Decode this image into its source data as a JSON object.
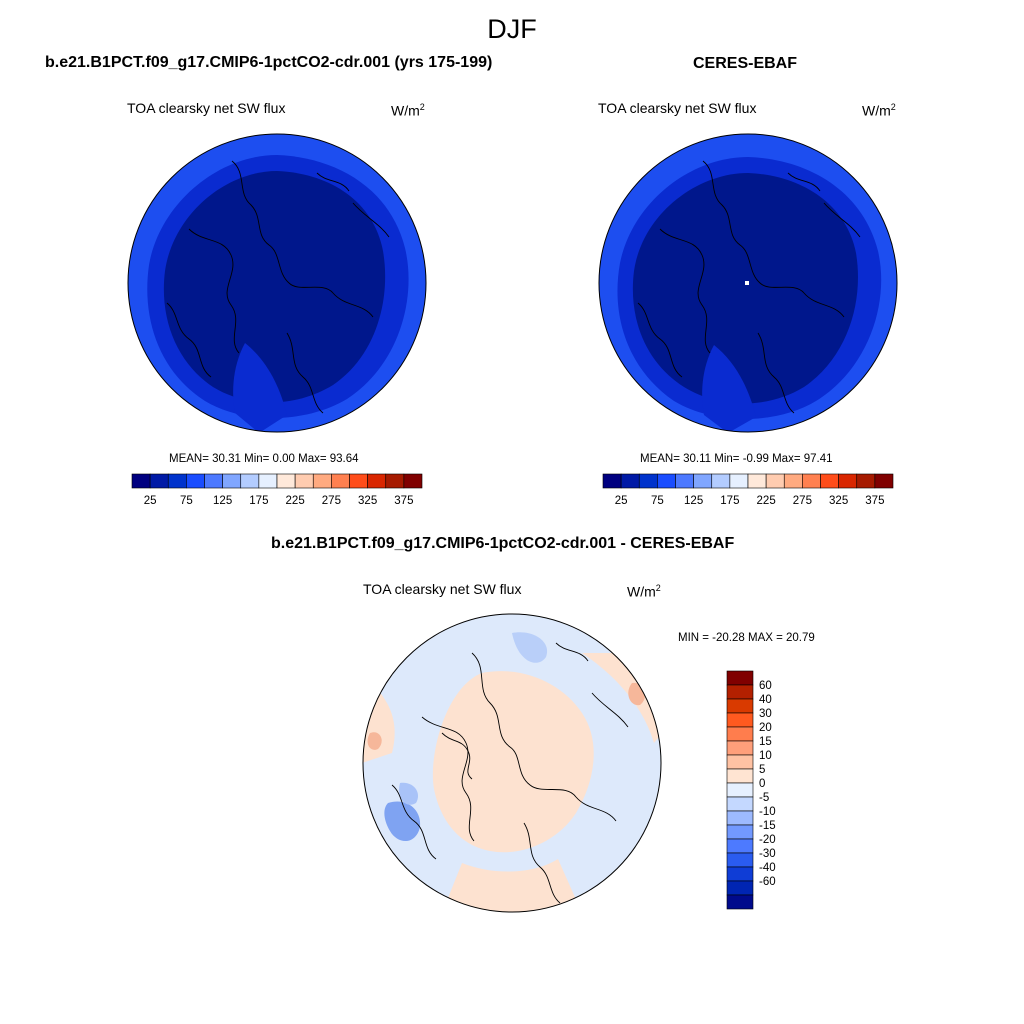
{
  "season": "DJF",
  "left_panel": {
    "title": "b.e21.B1PCT.f09_g17.CMIP6-1pctCO2-cdr.001 (yrs 175-199)",
    "variable": "TOA clearsky net SW flux",
    "unit_base": "W/m",
    "unit_exp": "2",
    "stats": "MEAN=  30.31  Min=   0.00  Max=  93.64"
  },
  "right_panel": {
    "title": "CERES-EBAF",
    "variable": "TOA clearsky net SW flux",
    "unit_base": "W/m",
    "unit_exp": "2",
    "stats": "MEAN=  30.11  Min=  -0.99  Max=  97.41"
  },
  "diff_panel": {
    "title": "b.e21.B1PCT.f09_g17.CMIP6-1pctCO2-cdr.001 - CERES-EBAF",
    "variable": "TOA clearsky net SW flux",
    "unit_base": "W/m",
    "unit_exp": "2",
    "stats": "MIN = -20.28 MAX =  20.79"
  },
  "colors": {
    "abs_scale": [
      "#000080",
      "#001aa6",
      "#0033cc",
      "#1a4dff",
      "#4d79ff",
      "#80a6ff",
      "#b3ccff",
      "#e6f0ff",
      "#ffe9da",
      "#ffccb0",
      "#ffaa80",
      "#ff8050",
      "#ff4d1a",
      "#d92600",
      "#a61a00",
      "#800000"
    ],
    "diff_scale_top_to_bottom": [
      "#800000",
      "#b32000",
      "#d93a00",
      "#ff5a1f",
      "#ff7d4d",
      "#ff9f7a",
      "#ffc2a3",
      "#ffe4d2",
      "#e6f0ff",
      "#c4d8ff",
      "#9dbaff",
      "#7299ff",
      "#4d7aff",
      "#2a5cf0",
      "#0f3dd6",
      "#0025b3",
      "#000a8c"
    ],
    "ocean_deep": "#00178c",
    "ocean_mid": "#0a2bd0",
    "ocean_outer": "#1d4ef0",
    "diff_positive": "#fde2d0",
    "diff_negative": "#dde9fb"
  },
  "chart_data": [
    {
      "type": "heatmap",
      "title": "b.e21.B1PCT.f09_g17.CMIP6-1pctCO2-cdr.001 (yrs 175-199)",
      "variable": "TOA clearsky net SW flux",
      "units": "W/m2",
      "projection": "north-polar-stereographic",
      "mean": 30.31,
      "min": 0.0,
      "max": 93.64,
      "colorbar_levels": [
        25,
        50,
        75,
        100,
        125,
        150,
        175,
        200,
        225,
        250,
        275,
        300,
        325,
        350,
        375
      ],
      "colorbar_tick_labels": [
        "25",
        "75",
        "125",
        "175",
        "225",
        "275",
        "325",
        "375"
      ]
    },
    {
      "type": "heatmap",
      "title": "CERES-EBAF",
      "variable": "TOA clearsky net SW flux",
      "units": "W/m2",
      "projection": "north-polar-stereographic",
      "mean": 30.11,
      "min": -0.99,
      "max": 97.41,
      "colorbar_levels": [
        25,
        50,
        75,
        100,
        125,
        150,
        175,
        200,
        225,
        250,
        275,
        300,
        325,
        350,
        375
      ],
      "colorbar_tick_labels": [
        "25",
        "75",
        "125",
        "175",
        "225",
        "275",
        "325",
        "375"
      ]
    },
    {
      "type": "heatmap",
      "title": "b.e21.B1PCT.f09_g17.CMIP6-1pctCO2-cdr.001 - CERES-EBAF",
      "variable": "TOA clearsky net SW flux",
      "units": "W/m2",
      "projection": "north-polar-stereographic",
      "min": -20.28,
      "max": 20.79,
      "colorbar_levels": [
        60,
        40,
        30,
        20,
        15,
        10,
        5,
        0,
        -5,
        -10,
        -15,
        -20,
        -30,
        -40,
        -60
      ],
      "colorbar_tick_labels": [
        "60",
        "40",
        "30",
        "20",
        "15",
        "10",
        "5",
        "0",
        "-5",
        "-10",
        "-15",
        "-20",
        "-30",
        "-40",
        "-60"
      ]
    }
  ]
}
